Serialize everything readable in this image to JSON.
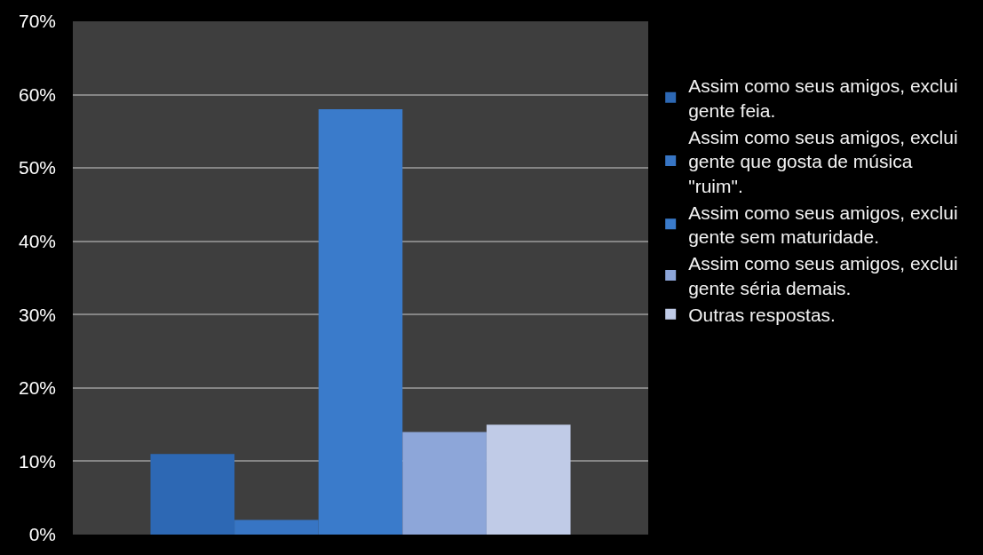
{
  "chart_data": {
    "type": "bar",
    "categories": [
      null
    ],
    "series": [
      {
        "name": "Assim como seus amigos, exclui gente feia.",
        "color": "#2d68b4",
        "values": [
          11
        ]
      },
      {
        "name": "Assim como seus amigos, exclui gente que gosta de música \"ruim\".",
        "color": "#3775c4",
        "values": [
          2
        ]
      },
      {
        "name": "Assim como seus amigos, exclui gente sem maturidade.",
        "color": "#3a7bcb",
        "values": [
          58
        ]
      },
      {
        "name": "Assim como seus amigos, exclui gente séria demais.",
        "color": "#8da6d9",
        "values": [
          14
        ]
      },
      {
        "name": "Outras respostas.",
        "color": "#c0cbe7",
        "values": [
          15
        ]
      }
    ],
    "ylim": [
      0,
      70
    ],
    "yticks": [
      {
        "value": 0,
        "label": "0%"
      },
      {
        "value": 10,
        "label": "10%"
      },
      {
        "value": 20,
        "label": "20%"
      },
      {
        "value": 30,
        "label": "30%"
      },
      {
        "value": 40,
        "label": "40%"
      },
      {
        "value": 50,
        "label": "50%"
      },
      {
        "value": 60,
        "label": "60%"
      },
      {
        "value": 70,
        "label": "70%"
      }
    ],
    "grid": "y",
    "legend": "right"
  }
}
